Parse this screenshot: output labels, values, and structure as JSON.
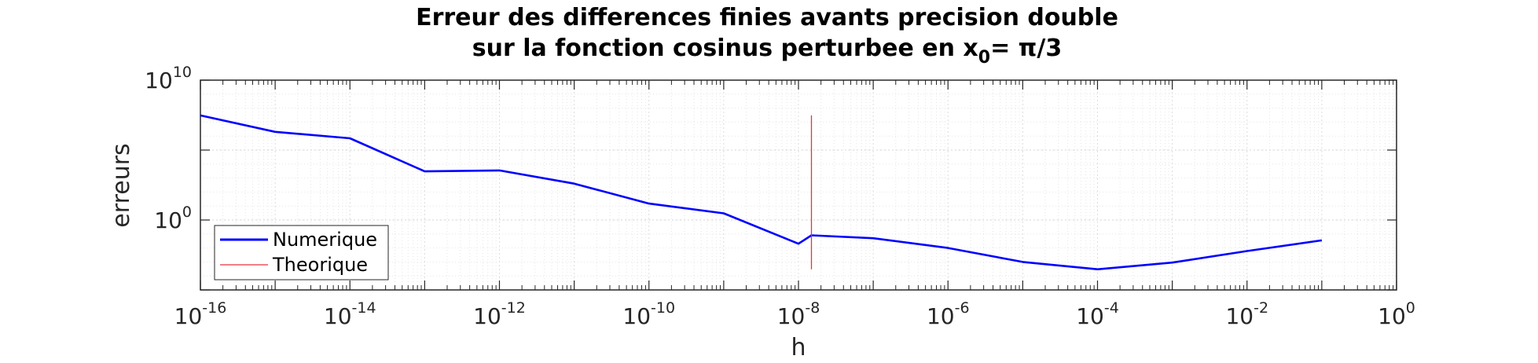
{
  "chart_data": {
    "type": "line",
    "title_line1": "Erreur des differences finies avants precision double",
    "title_line2_prefix": "sur la fonction cosinus perturbee en x",
    "title_line2_sub": "0",
    "title_line2_suffix": "= π/3",
    "xlabel": "h",
    "ylabel": "erreurs",
    "xscale": "log",
    "yscale": "log",
    "xlim": [
      1e-16,
      1
    ],
    "ylim": [
      1e-05,
      10000000000.0
    ],
    "grid": true,
    "minor_grid": true,
    "x_ticks": [
      {
        "base": "10",
        "exp": "-16",
        "value": 1e-16
      },
      {
        "base": "10",
        "exp": "-14",
        "value": 1e-14
      },
      {
        "base": "10",
        "exp": "-12",
        "value": 1e-12
      },
      {
        "base": "10",
        "exp": "-10",
        "value": 1e-10
      },
      {
        "base": "10",
        "exp": "-8",
        "value": 1e-08
      },
      {
        "base": "10",
        "exp": "-6",
        "value": 1e-06
      },
      {
        "base": "10",
        "exp": "-4",
        "value": 0.0001
      },
      {
        "base": "10",
        "exp": "-2",
        "value": 0.01
      },
      {
        "base": "10",
        "exp": "0",
        "value": 1
      }
    ],
    "y_ticks": [
      {
        "base": "10",
        "exp": "10",
        "value": 10000000000.0
      },
      {
        "base": "10",
        "exp": "0",
        "value": 1
      }
    ],
    "legend_position": "bottom-left",
    "series": [
      {
        "name": "Numerique",
        "color": "#0000ff",
        "points": [
          [
            1e-16,
            30000000
          ],
          [
            1e-15,
            2000000
          ],
          [
            1e-14,
            700000
          ],
          [
            1e-13,
            3000
          ],
          [
            1e-12,
            3500
          ],
          [
            1e-11,
            400
          ],
          [
            1e-10,
            15
          ],
          [
            1e-09,
            3
          ],
          [
            1e-08,
            0.02
          ],
          [
            1.49e-08,
            0.08
          ],
          [
            1e-07,
            0.05
          ],
          [
            1e-06,
            0.01
          ],
          [
            1e-05,
            0.001
          ],
          [
            0.0001,
            0.0003
          ],
          [
            0.001,
            0.0009
          ],
          [
            0.01,
            0.006
          ],
          [
            0.1,
            0.035
          ]
        ]
      },
      {
        "name": "Theorique",
        "color": "#e8323c",
        "points": [
          [
            1.49e-08,
            0.0003
          ],
          [
            1.49e-08,
            30000000
          ]
        ]
      }
    ]
  }
}
